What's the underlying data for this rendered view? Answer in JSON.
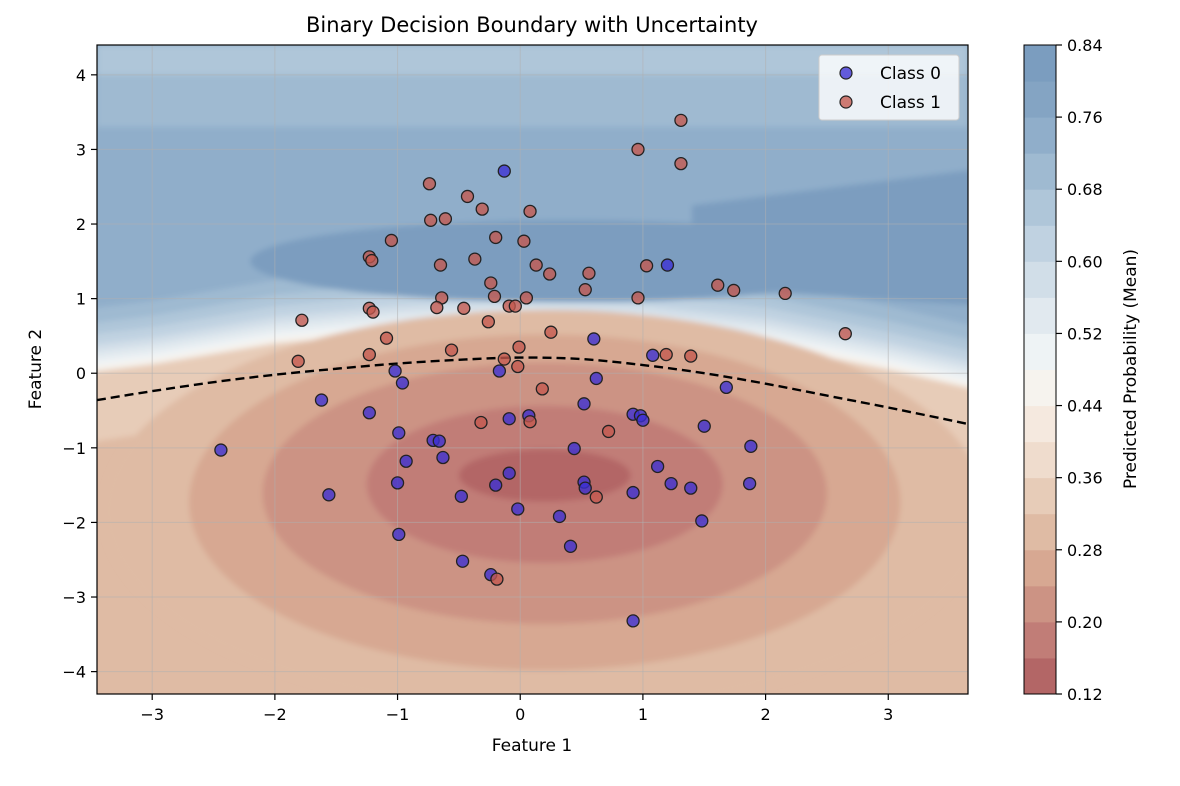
{
  "chart_data": {
    "type": "scatter",
    "title": "Binary Decision Boundary with Uncertainty",
    "xlabel": "Feature 1",
    "ylabel": "Feature 2",
    "xlim": [
      -3.45,
      3.65
    ],
    "ylim": [
      -4.3,
      4.4
    ],
    "xticks": [
      -3,
      -2,
      -1,
      0,
      1,
      2,
      3
    ],
    "yticks": [
      -4,
      -3,
      -2,
      -1,
      0,
      1,
      2,
      3,
      4
    ],
    "xtick_labels": [
      "−3",
      "−2",
      "−1",
      "0",
      "1",
      "2",
      "3"
    ],
    "ytick_labels": [
      "−4",
      "−3",
      "−2",
      "−1",
      "0",
      "1",
      "2",
      "3",
      "4"
    ],
    "grid": true,
    "legend_position": "top-right",
    "decision_boundary": {
      "style": "dashed",
      "color": "#000000",
      "x": [
        -3.45,
        -3.0,
        -2.5,
        -2.0,
        -1.5,
        -1.0,
        -0.5,
        0.0,
        0.5,
        1.0,
        1.5,
        2.0,
        2.5,
        3.0,
        3.65
      ],
      "y": [
        -0.36,
        -0.24,
        -0.12,
        -0.02,
        0.06,
        0.13,
        0.18,
        0.21,
        0.19,
        0.11,
        0.0,
        -0.14,
        -0.3,
        -0.46,
        -0.68
      ]
    },
    "colorbar": {
      "label": "Predicted Probability (Mean)",
      "min": 0.12,
      "max": 0.84,
      "ticks": [
        0.12,
        0.2,
        0.28,
        0.36,
        0.44,
        0.52,
        0.6,
        0.68,
        0.76,
        0.84
      ],
      "tick_labels": [
        "0.12",
        "0.20",
        "0.28",
        "0.36",
        "0.44",
        "0.52",
        "0.60",
        "0.68",
        "0.76",
        "0.84"
      ],
      "levels": 18,
      "colors": [
        "#b36666",
        "#c17d77",
        "#cc9384",
        "#d7a892",
        "#dfbba4",
        "#e7ccb8",
        "#efdccd",
        "#f5e9df",
        "#f6f3ee",
        "#eef3f5",
        "#e1e9ef",
        "#d1dee8",
        "#c0d2e1",
        "#afc6d9",
        "#9fbad1",
        "#90aeca",
        "#84a4c3",
        "#7b9dbf"
      ]
    },
    "series": [
      {
        "name": "Class 0",
        "color": "#3b2fd4",
        "points": [
          [
            -0.13,
            2.71
          ],
          [
            1.2,
            1.45
          ],
          [
            0.6,
            0.46
          ],
          [
            1.08,
            0.24
          ],
          [
            -0.17,
            0.03
          ],
          [
            -1.02,
            0.03
          ],
          [
            -0.96,
            -0.13
          ],
          [
            0.62,
            -0.07
          ],
          [
            1.68,
            -0.19
          ],
          [
            -1.62,
            -0.36
          ],
          [
            -1.23,
            -0.53
          ],
          [
            0.52,
            -0.41
          ],
          [
            0.07,
            -0.57
          ],
          [
            -0.09,
            -0.61
          ],
          [
            0.92,
            -0.55
          ],
          [
            0.98,
            -0.57
          ],
          [
            1.0,
            -0.63
          ],
          [
            1.5,
            -0.71
          ],
          [
            -0.99,
            -0.8
          ],
          [
            -0.71,
            -0.9
          ],
          [
            -0.66,
            -0.91
          ],
          [
            0.44,
            -1.01
          ],
          [
            -2.44,
            -1.03
          ],
          [
            1.88,
            -0.98
          ],
          [
            -0.63,
            -1.13
          ],
          [
            -0.93,
            -1.18
          ],
          [
            1.12,
            -1.25
          ],
          [
            -0.09,
            -1.34
          ],
          [
            0.52,
            -1.46
          ],
          [
            -1.0,
            -1.47
          ],
          [
            0.53,
            -1.54
          ],
          [
            -0.2,
            -1.5
          ],
          [
            1.23,
            -1.48
          ],
          [
            1.39,
            -1.54
          ],
          [
            1.87,
            -1.48
          ],
          [
            -1.56,
            -1.63
          ],
          [
            -0.48,
            -1.65
          ],
          [
            0.92,
            -1.6
          ],
          [
            -0.02,
            -1.82
          ],
          [
            0.32,
            -1.92
          ],
          [
            1.48,
            -1.98
          ],
          [
            -0.99,
            -2.16
          ],
          [
            0.41,
            -2.32
          ],
          [
            -0.47,
            -2.52
          ],
          [
            -0.24,
            -2.7
          ],
          [
            0.92,
            -3.32
          ]
        ]
      },
      {
        "name": "Class 1",
        "color": "#c4594e",
        "points": [
          [
            1.31,
            3.39
          ],
          [
            0.96,
            3.0
          ],
          [
            1.31,
            2.81
          ],
          [
            -0.74,
            2.54
          ],
          [
            -0.43,
            2.37
          ],
          [
            -0.31,
            2.2
          ],
          [
            0.08,
            2.17
          ],
          [
            -0.73,
            2.05
          ],
          [
            -0.61,
            2.07
          ],
          [
            -0.2,
            1.82
          ],
          [
            0.03,
            1.77
          ],
          [
            -1.05,
            1.78
          ],
          [
            -1.23,
            1.56
          ],
          [
            -1.21,
            1.51
          ],
          [
            -0.37,
            1.53
          ],
          [
            -0.65,
            1.45
          ],
          [
            0.13,
            1.45
          ],
          [
            1.03,
            1.44
          ],
          [
            0.56,
            1.34
          ],
          [
            0.24,
            1.33
          ],
          [
            -0.24,
            1.21
          ],
          [
            1.61,
            1.18
          ],
          [
            1.74,
            1.11
          ],
          [
            0.53,
            1.12
          ],
          [
            2.16,
            1.07
          ],
          [
            -0.21,
            1.03
          ],
          [
            0.05,
            1.01
          ],
          [
            -0.64,
            1.01
          ],
          [
            0.96,
            1.01
          ],
          [
            -0.09,
            0.9
          ],
          [
            -0.04,
            0.9
          ],
          [
            -0.68,
            0.88
          ],
          [
            -0.46,
            0.87
          ],
          [
            -1.23,
            0.87
          ],
          [
            -1.2,
            0.82
          ],
          [
            -1.78,
            0.71
          ],
          [
            -0.26,
            0.69
          ],
          [
            0.25,
            0.55
          ],
          [
            2.65,
            0.53
          ],
          [
            -1.09,
            0.47
          ],
          [
            -0.01,
            0.35
          ],
          [
            -0.56,
            0.31
          ],
          [
            -1.23,
            0.25
          ],
          [
            1.19,
            0.25
          ],
          [
            1.39,
            0.23
          ],
          [
            -0.13,
            0.19
          ],
          [
            -1.81,
            0.16
          ],
          [
            -0.02,
            0.09
          ],
          [
            0.18,
            -0.21
          ],
          [
            -0.32,
            -0.66
          ],
          [
            0.08,
            -0.65
          ],
          [
            0.72,
            -0.78
          ],
          [
            0.62,
            -1.66
          ],
          [
            -0.19,
            -2.76
          ]
        ]
      }
    ]
  }
}
